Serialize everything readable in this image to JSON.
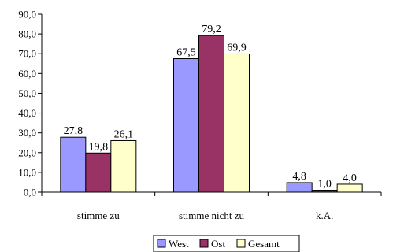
{
  "chart_data": {
    "type": "bar",
    "categories": [
      "stimme zu",
      "stimme nicht zu",
      "k.A."
    ],
    "series": [
      {
        "name": "West",
        "values": [
          27.8,
          67.5,
          4.8
        ],
        "color": "#9999FF",
        "labels": [
          "27,8",
          "67,5",
          "4,8"
        ]
      },
      {
        "name": "Ost",
        "values": [
          19.8,
          79.2,
          1.0
        ],
        "color": "#993366",
        "labels": [
          "19,8",
          "79,2",
          "1,0"
        ]
      },
      {
        "name": "Gesamt",
        "values": [
          26.1,
          69.9,
          4.0
        ],
        "color": "#FFFFCC",
        "labels": [
          "26,1",
          "69,9",
          "4,0"
        ]
      }
    ],
    "ylim": [
      0,
      90
    ],
    "yticks": [
      0,
      10,
      20,
      30,
      40,
      50,
      60,
      70,
      80,
      90
    ],
    "ytick_labels": [
      "0,0",
      "10,0",
      "20,0",
      "30,0",
      "40,0",
      "50,0",
      "60,0",
      "70,0",
      "80,0",
      "90,0"
    ],
    "title": "",
    "xlabel": "",
    "ylabel": "",
    "grid": false,
    "legend": "bottom-center"
  }
}
